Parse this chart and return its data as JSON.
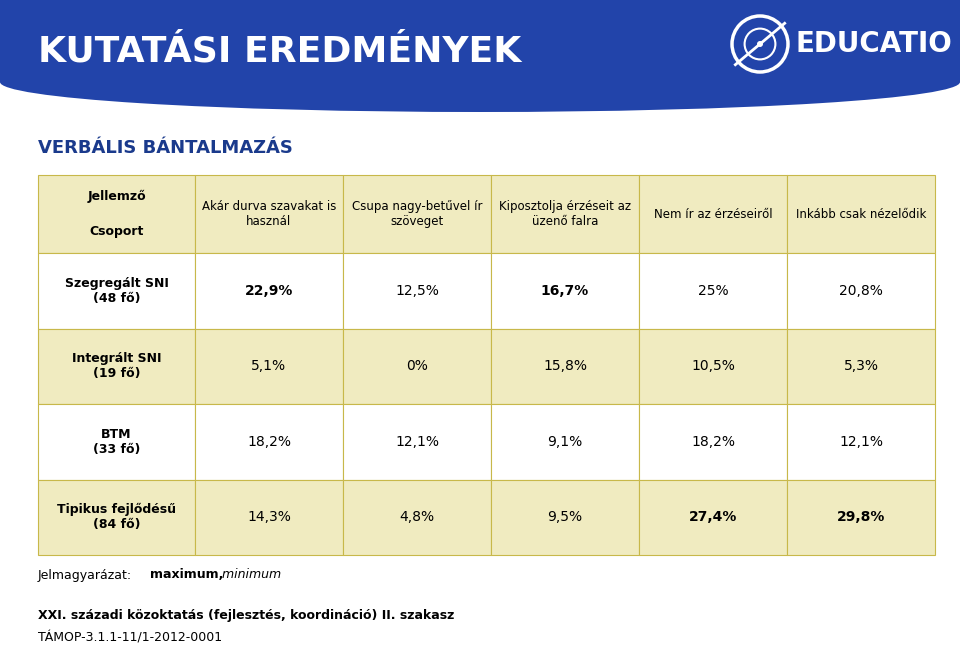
{
  "title": "KUTATÁSI EREDMÉNYEK",
  "subtitle": "VERBÁLIS BÁNTALMAZÁS",
  "header_row1": "Jellemző",
  "header_row2": "Csoport",
  "col_headers": [
    "Akár durva szavakat is\nhasznál",
    "Csupa nagy-betűvel ír\nszöveget",
    "Kiposztolja érzéseit az\nüzenő falra",
    "Nem ír az érzéseiről",
    "Inkább csak nézelődik"
  ],
  "row_headers": [
    "Szegregált SNI\n(48 fő)",
    "Integrált SNI\n(19 fő)",
    "BTM\n(33 fő)",
    "Tipikus fejlődésű\n(84 fő)"
  ],
  "data": [
    [
      "22,9%",
      "12,5%",
      "16,7%",
      "25%",
      "20,8%"
    ],
    [
      "5,1%",
      "0%",
      "15,8%",
      "10,5%",
      "5,3%"
    ],
    [
      "18,2%",
      "12,1%",
      "9,1%",
      "18,2%",
      "12,1%"
    ],
    [
      "14,3%",
      "4,8%",
      "9,5%",
      "27,4%",
      "29,8%"
    ]
  ],
  "bold_data": {
    "0,0": true,
    "0,2": true,
    "3,3": true,
    "3,4": true
  },
  "header_bg": "#f0ebc0",
  "row_bg_even": "#ffffff",
  "row_bg_odd": "#f0ebc0",
  "border_col": "#c8b84a",
  "header_blue": "#2244aa",
  "footer_text_prefix": "Jelmagyarázat: ",
  "footer_bold": "maximum,",
  "footer_italic": " minimum",
  "bottom_text1": "XXI. századi közoktatás (fejlesztés, koordináció) II. szakasz",
  "bottom_text2": "TÁMOP-3.1.1-11/1-2012-0001",
  "logo_text": "EDUCATIO",
  "bg_color": "#ffffff"
}
